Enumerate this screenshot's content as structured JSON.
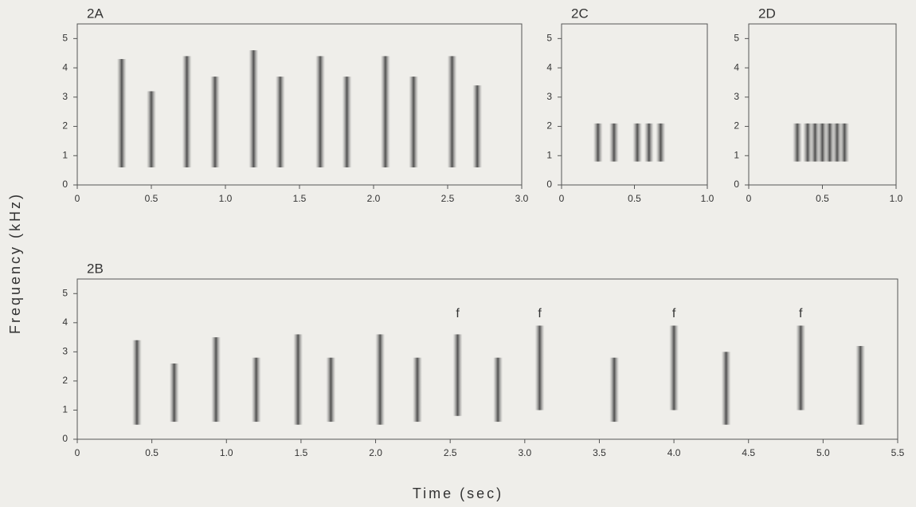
{
  "figure": {
    "xlabel": "Time (sec)",
    "ylabel": "Frequency (kHz)"
  },
  "chart_data": [
    {
      "type": "spectrogram",
      "title": "2A",
      "xlim": [
        0,
        3
      ],
      "ylim": [
        0,
        5.5
      ],
      "xticks": [
        0,
        0.5,
        {
          "value": 1,
          "label": "1.0"
        },
        1.5,
        {
          "value": 2,
          "label": "2.0"
        },
        2.5,
        {
          "value": 3,
          "label": "3.0"
        }
      ],
      "yticks": [
        0,
        1,
        2,
        3,
        4,
        5
      ],
      "events": [
        {
          "t": 0.3,
          "fmin": 0.6,
          "fmax": 4.3
        },
        {
          "t": 0.5,
          "fmin": 0.6,
          "fmax": 3.2
        },
        {
          "t": 0.74,
          "fmin": 0.6,
          "fmax": 4.4
        },
        {
          "t": 0.93,
          "fmin": 0.6,
          "fmax": 3.7
        },
        {
          "t": 1.19,
          "fmin": 0.6,
          "fmax": 4.6
        },
        {
          "t": 1.37,
          "fmin": 0.6,
          "fmax": 3.7
        },
        {
          "t": 1.64,
          "fmin": 0.6,
          "fmax": 4.4
        },
        {
          "t": 1.82,
          "fmin": 0.6,
          "fmax": 3.7
        },
        {
          "t": 2.08,
          "fmin": 0.6,
          "fmax": 4.4
        },
        {
          "t": 2.27,
          "fmin": 0.6,
          "fmax": 3.7
        },
        {
          "t": 2.53,
          "fmin": 0.6,
          "fmax": 4.4
        },
        {
          "t": 2.7,
          "fmin": 0.6,
          "fmax": 3.4
        }
      ]
    },
    {
      "type": "spectrogram",
      "title": "2C",
      "xlim": [
        0,
        1
      ],
      "ylim": [
        0,
        5.5
      ],
      "xticks": [
        0,
        0.5,
        {
          "value": 1,
          "label": "1.0"
        }
      ],
      "yticks": [
        0,
        1,
        2,
        3,
        4,
        5
      ],
      "events": [
        {
          "t": 0.25,
          "fmin": 0.8,
          "fmax": 2.1
        },
        {
          "t": 0.36,
          "fmin": 0.8,
          "fmax": 2.1
        },
        {
          "t": 0.52,
          "fmin": 0.8,
          "fmax": 2.1
        },
        {
          "t": 0.6,
          "fmin": 0.8,
          "fmax": 2.1
        },
        {
          "t": 0.68,
          "fmin": 0.8,
          "fmax": 2.1
        }
      ]
    },
    {
      "type": "spectrogram",
      "title": "2D",
      "xlim": [
        0,
        1
      ],
      "ylim": [
        0,
        5.5
      ],
      "xticks": [
        0,
        0.5,
        {
          "value": 1,
          "label": "1.0"
        }
      ],
      "yticks": [
        0,
        1,
        2,
        3,
        4,
        5
      ],
      "events": [
        {
          "t": 0.33,
          "fmin": 0.8,
          "fmax": 2.1
        },
        {
          "t": 0.4,
          "fmin": 0.8,
          "fmax": 2.1
        },
        {
          "t": 0.45,
          "fmin": 0.8,
          "fmax": 2.1
        },
        {
          "t": 0.5,
          "fmin": 0.8,
          "fmax": 2.1
        },
        {
          "t": 0.55,
          "fmin": 0.8,
          "fmax": 2.1
        },
        {
          "t": 0.6,
          "fmin": 0.8,
          "fmax": 2.1
        },
        {
          "t": 0.65,
          "fmin": 0.8,
          "fmax": 2.1
        }
      ]
    },
    {
      "type": "spectrogram",
      "title": "2B",
      "xlim": [
        0,
        5.5
      ],
      "ylim": [
        0,
        5.5
      ],
      "xticks": [
        0,
        0.5,
        {
          "value": 1,
          "label": "1.0"
        },
        1.5,
        {
          "value": 2,
          "label": "2.0"
        },
        2.5,
        {
          "value": 3,
          "label": "3.0"
        },
        3.5,
        {
          "value": 4,
          "label": "4.0"
        },
        4.5,
        {
          "value": 5,
          "label": "5.0"
        },
        5.5
      ],
      "yticks": [
        0,
        1,
        2,
        3,
        4,
        5
      ],
      "events": [
        {
          "t": 0.4,
          "fmin": 0.5,
          "fmax": 3.4
        },
        {
          "t": 0.65,
          "fmin": 0.6,
          "fmax": 2.6
        },
        {
          "t": 0.93,
          "fmin": 0.6,
          "fmax": 3.5
        },
        {
          "t": 1.2,
          "fmin": 0.6,
          "fmax": 2.8
        },
        {
          "t": 1.48,
          "fmin": 0.5,
          "fmax": 3.6
        },
        {
          "t": 1.7,
          "fmin": 0.6,
          "fmax": 2.8
        },
        {
          "t": 2.03,
          "fmin": 0.5,
          "fmax": 3.6
        },
        {
          "t": 2.28,
          "fmin": 0.6,
          "fmax": 2.8
        },
        {
          "t": 2.55,
          "fmin": 0.8,
          "fmax": 3.6
        },
        {
          "t": 2.82,
          "fmin": 0.6,
          "fmax": 2.8
        },
        {
          "t": 3.1,
          "fmin": 1.0,
          "fmax": 3.9
        },
        {
          "t": 3.6,
          "fmin": 0.6,
          "fmax": 2.8
        },
        {
          "t": 4.0,
          "fmin": 1.0,
          "fmax": 3.9
        },
        {
          "t": 4.35,
          "fmin": 0.5,
          "fmax": 3.0
        },
        {
          "t": 4.85,
          "fmin": 1.0,
          "fmax": 3.9
        },
        {
          "t": 5.25,
          "fmin": 0.5,
          "fmax": 3.2
        }
      ],
      "annotations": [
        {
          "text": "f",
          "x": 2.55,
          "y": 4.3
        },
        {
          "text": "f",
          "x": 3.1,
          "y": 4.3
        },
        {
          "text": "f",
          "x": 4.0,
          "y": 4.3
        },
        {
          "text": "f",
          "x": 4.85,
          "y": 4.3
        }
      ]
    }
  ]
}
